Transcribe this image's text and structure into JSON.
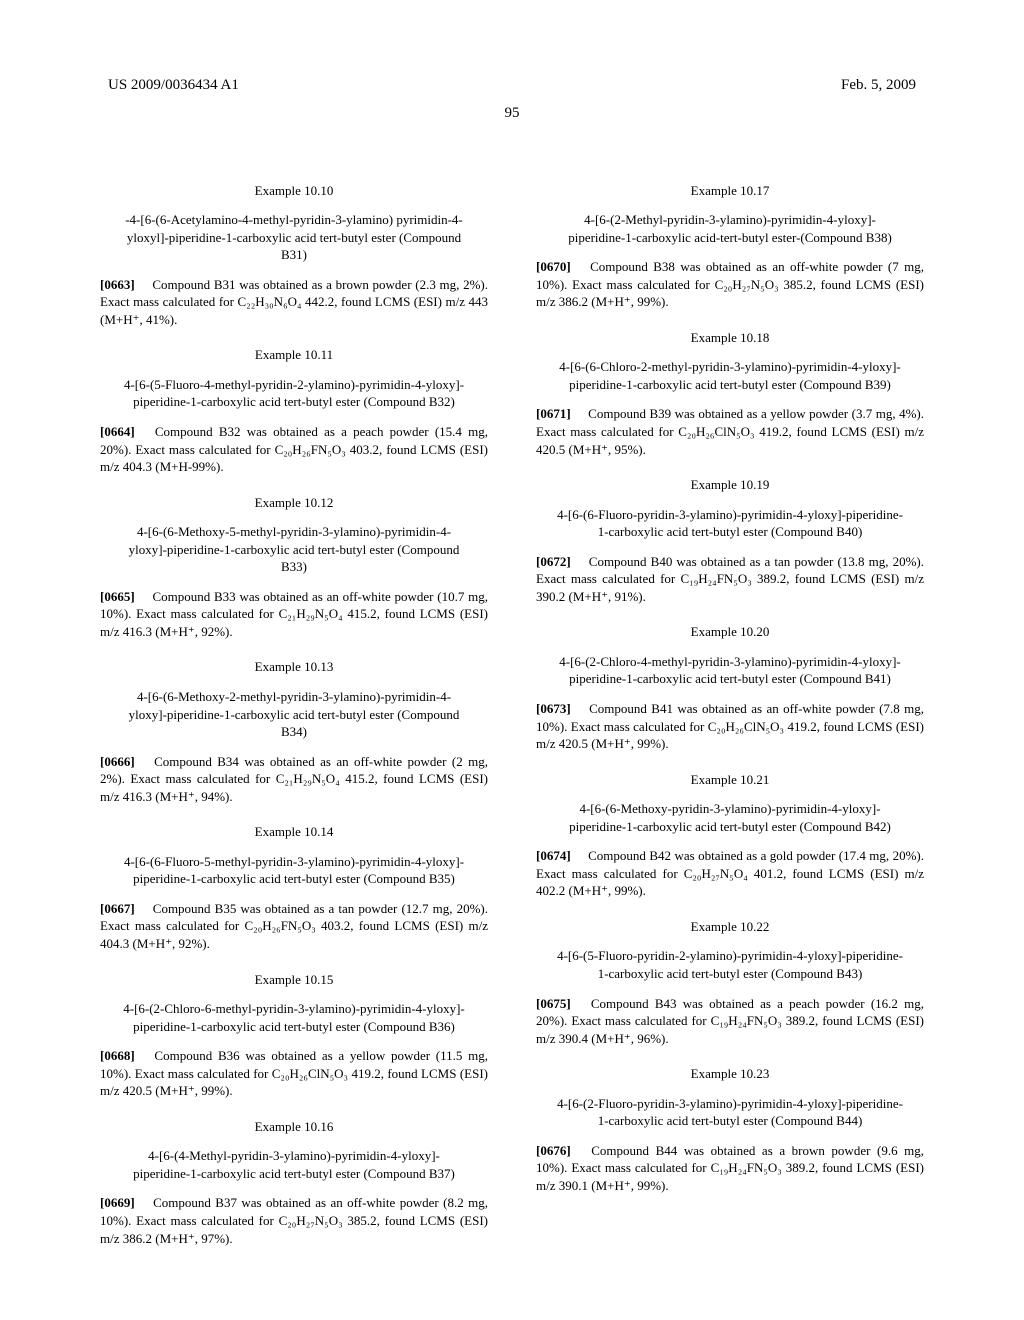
{
  "header": {
    "left": "US 2009/0036434 A1",
    "right": "Feb. 5, 2009"
  },
  "pageNumber": "95",
  "leftColumn": [
    {
      "heading": "Example 10.10",
      "title": "-4-[6-(6-Acetylamino-4-methyl-pyridin-3-ylamino) pyrimidin-4-yloxyl]-piperidine-1-carboxylic acid tert-butyl ester (Compound B31)",
      "paraNum": "[0663]",
      "paraText": "Compound B31 was obtained as a brown powder (2.3 mg, 2%). Exact mass calculated for C₂₂H₃₀N₆O₄ 442.2, found LCMS (ESI) m/z 443 (M+H⁺, 41%)."
    },
    {
      "heading": "Example 10.11",
      "title": "4-[6-(5-Fluoro-4-methyl-pyridin-2-ylamino)-pyrimidin-4-yloxy]-piperidine-1-carboxylic acid tert-butyl ester (Compound B32)",
      "paraNum": "[0664]",
      "paraText": "Compound B32 was obtained as a peach powder (15.4 mg, 20%). Exact mass calculated for C₂₀H₂₆FN₅O₃ 403.2, found LCMS (ESI) m/z 404.3 (M+H-99%)."
    },
    {
      "heading": "Example 10.12",
      "title": "4-[6-(6-Methoxy-5-methyl-pyridin-3-ylamino)-pyrimidin-4-yloxy]-piperidine-1-carboxylic acid tert-butyl ester (Compound B33)",
      "paraNum": "[0665]",
      "paraText": "Compound B33 was obtained as an off-white powder (10.7 mg, 10%). Exact mass calculated for C₂₁H₂₉N₅O₄ 415.2, found LCMS (ESI) m/z 416.3 (M+H⁺, 92%)."
    },
    {
      "heading": "Example 10.13",
      "title": "4-[6-(6-Methoxy-2-methyl-pyridin-3-ylamino)-pyrimidin-4-yloxy]-piperidine-1-carboxylic acid tert-butyl ester (Compound B34)",
      "paraNum": "[0666]",
      "paraText": "Compound B34 was obtained as an off-white powder (2 mg, 2%). Exact mass calculated for C₂₁H₂₉N₅O₄ 415.2, found LCMS (ESI) m/z 416.3 (M+H⁺, 94%)."
    },
    {
      "heading": "Example 10.14",
      "title": "4-[6-(6-Fluoro-5-methyl-pyridin-3-ylamino)-pyrimidin-4-yloxy]-piperidine-1-carboxylic acid tert-butyl ester (Compound B35)",
      "paraNum": "[0667]",
      "paraText": "Compound B35 was obtained as a tan powder (12.7 mg, 20%). Exact mass calculated for C₂₀H₂₆FN₅O₃ 403.2, found LCMS (ESI) m/z 404.3 (M+H⁺, 92%)."
    },
    {
      "heading": "Example 10.15",
      "title": "4-[6-(2-Chloro-6-methyl-pyridin-3-ylamino)-pyrimidin-4-yloxy]-piperidine-1-carboxylic acid tert-butyl ester (Compound B36)",
      "paraNum": "[0668]",
      "paraText": "Compound B36 was obtained as a yellow powder (11.5 mg, 10%). Exact mass calculated for C₂₀H₂₆ClN₅O₃ 419.2, found LCMS (ESI) m/z 420.5 (M+H⁺, 99%)."
    },
    {
      "heading": "Example 10.16",
      "title": "4-[6-(4-Methyl-pyridin-3-ylamino)-pyrimidin-4-yloxy]-piperidine-1-carboxylic acid tert-butyl ester (Compound B37)",
      "paraNum": "[0669]",
      "paraText": "Compound B37 was obtained as an off-white powder (8.2 mg, 10%). Exact mass calculated for C₂₀H₂₇N₅O₃ 385.2, found LCMS (ESI) m/z 386.2 (M+H⁺, 97%)."
    }
  ],
  "rightColumn": [
    {
      "heading": "Example 10.17",
      "title": "4-[6-(2-Methyl-pyridin-3-ylamino)-pyrimidin-4-yloxy]-piperidine-1-carboxylic acid-tert-butyl ester-(Compound B38)",
      "paraNum": "[0670]",
      "paraText": "Compound B38 was obtained as an off-white powder (7 mg, 10%). Exact mass calculated for C₂₀H₂₇N₅O₃ 385.2, found LCMS (ESI) m/z 386.2 (M+H⁺, 99%)."
    },
    {
      "heading": "Example 10.18",
      "title": "4-[6-(6-Chloro-2-methyl-pyridin-3-ylamino)-pyrimidin-4-yloxy]-piperidine-1-carboxylic acid tert-butyl ester (Compound B39)",
      "paraNum": "[0671]",
      "paraText": "Compound B39 was obtained as a yellow powder (3.7 mg, 4%). Exact mass calculated for C₂₀H₂₆ClN₅O₃ 419.2, found LCMS (ESI) m/z 420.5 (M+H⁺, 95%)."
    },
    {
      "heading": "Example 10.19",
      "title": "4-[6-(6-Fluoro-pyridin-3-ylamino)-pyrimidin-4-yloxy]-piperidine-1-carboxylic acid tert-butyl ester (Compound B40)",
      "paraNum": "[0672]",
      "paraText": "Compound B40 was obtained as a tan powder (13.8 mg, 20%). Exact mass calculated for C₁₉H₂₄FN₅O₃ 389.2, found LCMS (ESI) m/z 390.2 (M+H⁺, 91%)."
    },
    {
      "heading": "Example 10.20",
      "title": "4-[6-(2-Chloro-4-methyl-pyridin-3-ylamino)-pyrimidin-4-yloxy]-piperidine-1-carboxylic acid tert-butyl ester (Compound B41)",
      "paraNum": "[0673]",
      "paraText": "Compound B41 was obtained as an off-white powder (7.8 mg, 10%). Exact mass calculated for C₂₀H₂₆ClN₅O₃ 419.2, found LCMS (ESI) m/z 420.5 (M+H⁺, 99%)."
    },
    {
      "heading": "Example 10.21",
      "title": "4-[6-(6-Methoxy-pyridin-3-ylamino)-pyrimidin-4-yloxy]-piperidine-1-carboxylic acid tert-butyl ester (Compound B42)",
      "paraNum": "[0674]",
      "paraText": "Compound B42 was obtained as a gold powder (17.4 mg, 20%). Exact mass calculated for C₂₀H₂₇N₅O₄ 401.2, found LCMS (ESI) m/z 402.2 (M+H⁺, 99%)."
    },
    {
      "heading": "Example 10.22",
      "title": "4-[6-(5-Fluoro-pyridin-2-ylamino)-pyrimidin-4-yloxy]-piperidine-1-carboxylic acid tert-butyl ester (Compound B43)",
      "paraNum": "[0675]",
      "paraText": "Compound B43 was obtained as a peach powder (16.2 mg, 20%). Exact mass calculated for C₁₉H₂₄FN₅O₃ 389.2, found LCMS (ESI) m/z 390.4 (M+H⁺, 96%)."
    },
    {
      "heading": "Example 10.23",
      "title": "4-[6-(2-Fluoro-pyridin-3-ylamino)-pyrimidin-4-yloxy]-piperidine-1-carboxylic acid tert-butyl ester (Compound B44)",
      "paraNum": "[0676]",
      "paraText": "Compound B44 was obtained as a brown powder (9.6 mg, 10%). Exact mass calculated for C₁₉H₂₄FN₅O₃ 389.2, found LCMS (ESI) m/z 390.1 (M+H⁺, 99%)."
    }
  ]
}
